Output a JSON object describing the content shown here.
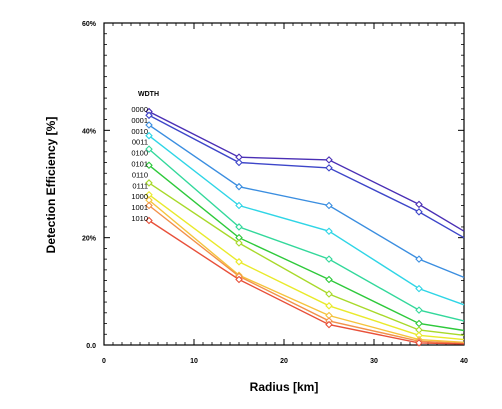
{
  "chart_data": {
    "type": "line",
    "title": "",
    "xlabel": "Radius [km]",
    "ylabel": "Detection Efficiency [%]",
    "xlim": [
      0,
      40
    ],
    "ylim": [
      0,
      60
    ],
    "x_ticks": [
      {
        "value": 0,
        "label": "0"
      },
      {
        "value": 10,
        "label": "10"
      },
      {
        "value": 20,
        "label": "20"
      },
      {
        "value": 30,
        "label": "30"
      },
      {
        "value": 40,
        "label": "40"
      }
    ],
    "y_ticks": [
      {
        "value": 0,
        "label": "0.0"
      },
      {
        "value": 20,
        "label": "20%"
      },
      {
        "value": 40,
        "label": "40%"
      },
      {
        "value": 60,
        "label": "60%"
      }
    ],
    "grid": false,
    "legend_title": "WDTH",
    "legend_position": "left",
    "x": [
      5,
      15,
      25,
      35,
      40
    ],
    "series": [
      {
        "name": "0000",
        "color": "#4a2fb5",
        "values": [
          43.5,
          35.0,
          34.5,
          26.2,
          21.2
        ]
      },
      {
        "name": "0001",
        "color": "#3d46c9",
        "values": [
          42.8,
          34.0,
          33.0,
          24.8,
          20.0
        ]
      },
      {
        "name": "0010",
        "color": "#3b8ee0",
        "values": [
          41.0,
          29.5,
          26.0,
          16.0,
          12.6
        ]
      },
      {
        "name": "0011",
        "color": "#2fd5e6",
        "values": [
          39.0,
          26.0,
          21.2,
          10.5,
          7.5
        ]
      },
      {
        "name": "0100",
        "color": "#33d89b",
        "values": [
          36.5,
          22.0,
          16.0,
          6.5,
          4.5
        ]
      },
      {
        "name": "0101",
        "color": "#2ec93b",
        "values": [
          33.5,
          20.0,
          12.2,
          4.0,
          2.7
        ]
      },
      {
        "name": "0110",
        "color": "#a8d92a",
        "values": [
          30.2,
          19.0,
          9.5,
          2.8,
          1.8
        ]
      },
      {
        "name": "0111",
        "color": "#e9ea2b",
        "values": [
          28.0,
          15.5,
          7.3,
          1.8,
          1.0
        ]
      },
      {
        "name": "1000",
        "color": "#f5c33c",
        "values": [
          27.0,
          13.0,
          5.5,
          1.0,
          0.5
        ]
      },
      {
        "name": "1001",
        "color": "#f2914a",
        "values": [
          26.0,
          12.8,
          4.5,
          0.7,
          0.3
        ]
      },
      {
        "name": "1010",
        "color": "#e8503a",
        "values": [
          23.2,
          12.2,
          3.8,
          0.4,
          0.2
        ]
      }
    ]
  }
}
